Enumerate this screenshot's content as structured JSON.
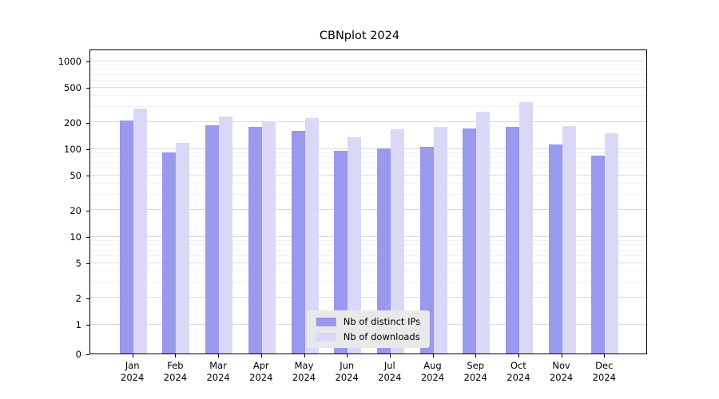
{
  "chart_data": {
    "type": "bar",
    "title": "CBNplot 2024",
    "categories": [
      "Jan",
      "Feb",
      "Mar",
      "Apr",
      "May",
      "Jun",
      "Jul",
      "Aug",
      "Sep",
      "Oct",
      "Nov",
      "Dec"
    ],
    "x_tick_year": "2024",
    "series": [
      {
        "name": "Nb of distinct IPs",
        "color": "#9999ed",
        "values": [
          210,
          90,
          185,
          175,
          160,
          95,
          100,
          105,
          170,
          178,
          110,
          83
        ]
      },
      {
        "name": "Nb of downloads",
        "color": "#d9d9f7",
        "values": [
          285,
          115,
          232,
          205,
          222,
          133,
          165,
          175,
          260,
          335,
          180,
          148
        ]
      }
    ],
    "y_axis": {
      "scale": "symlog",
      "ticks": [
        0,
        1,
        2,
        5,
        10,
        20,
        50,
        100,
        200,
        500,
        1000
      ],
      "range": [
        0,
        1000
      ]
    },
    "legend": {
      "position": "lower center",
      "entries": [
        "Nb of distinct IPs",
        "Nb of downloads"
      ]
    },
    "grid": "horizontal"
  }
}
